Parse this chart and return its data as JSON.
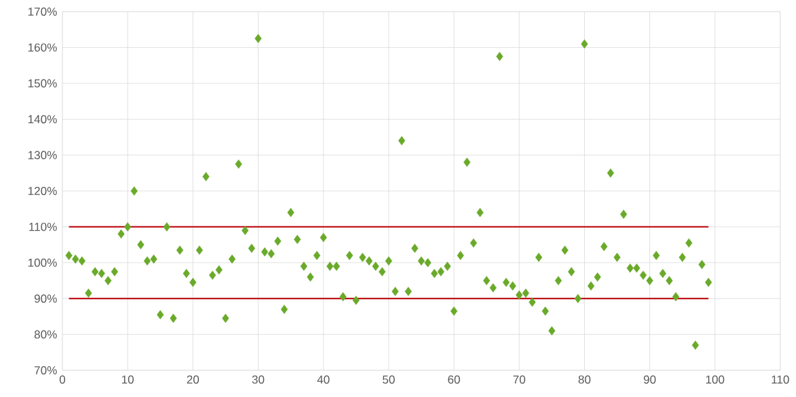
{
  "chart_data": {
    "type": "scatter",
    "xlim": [
      0,
      110
    ],
    "ylim": [
      70,
      170
    ],
    "xticks": [
      0,
      10,
      20,
      30,
      40,
      50,
      60,
      70,
      80,
      90,
      100,
      110
    ],
    "yticks": [
      {
        "value": 70,
        "label": "70%"
      },
      {
        "value": 80,
        "label": "80%"
      },
      {
        "value": 90,
        "label": "90%"
      },
      {
        "value": 100,
        "label": "100%"
      },
      {
        "value": 110,
        "label": "110%"
      },
      {
        "value": 120,
        "label": "120%"
      },
      {
        "value": 130,
        "label": "130%"
      },
      {
        "value": 140,
        "label": "140%"
      },
      {
        "value": 150,
        "label": "150%"
      },
      {
        "value": 160,
        "label": "160%"
      },
      {
        "value": 170,
        "label": "170%"
      }
    ],
    "grid": true,
    "legend": false,
    "series": [
      {
        "color": "#6aaa2a",
        "marker": "diamond",
        "x": [
          1,
          2,
          3,
          4,
          5,
          6,
          7,
          8,
          9,
          10,
          11,
          12,
          13,
          14,
          15,
          16,
          17,
          18,
          19,
          20,
          21,
          22,
          23,
          24,
          25,
          26,
          27,
          28,
          29,
          30,
          31,
          32,
          33,
          34,
          35,
          36,
          37,
          38,
          39,
          40,
          41,
          42,
          43,
          44,
          45,
          46,
          47,
          48,
          49,
          50,
          51,
          52,
          53,
          54,
          55,
          56,
          57,
          58,
          59,
          60,
          61,
          62,
          63,
          64,
          65,
          66,
          67,
          68,
          69,
          70,
          71,
          72,
          73,
          74,
          75,
          76,
          77,
          78,
          79,
          80,
          81,
          82,
          83,
          84,
          85,
          86,
          87,
          88,
          89,
          90,
          91,
          92,
          93,
          94,
          95,
          96,
          97,
          98,
          99
        ],
        "values": [
          102,
          101,
          100.5,
          91.5,
          97.5,
          97,
          95,
          97.5,
          108,
          110,
          120,
          105,
          100.5,
          101,
          85.5,
          110,
          84.5,
          103.5,
          97,
          94.5,
          103.5,
          124,
          96.5,
          98,
          84.5,
          101,
          127.5,
          109,
          104,
          162.5,
          103,
          102.5,
          106,
          87,
          114,
          106.5,
          99,
          96,
          102,
          107,
          99,
          99,
          90.5,
          102,
          89.5,
          101.5,
          100.5,
          99,
          97.5,
          100.5,
          92,
          134,
          92,
          104,
          100.5,
          100,
          97,
          97.5,
          99,
          86.5,
          102,
          128,
          105.5,
          114,
          95,
          93,
          157.5,
          94.5,
          93.5,
          91,
          91.5,
          89,
          101.5,
          86.5,
          81,
          95,
          103.5,
          97.5,
          90,
          161,
          93.5,
          96,
          104.5,
          125,
          101.5,
          113.5,
          98.5,
          98.5,
          96.5,
          95,
          102,
          97,
          95,
          90.5,
          101.5,
          105.5,
          77,
          99.5,
          94.5
        ]
      },
      {
        "type": "line",
        "color": "#c0161c",
        "marker": "none",
        "line_style": "solid",
        "x": [
          1,
          99
        ],
        "values": [
          110,
          110
        ]
      },
      {
        "type": "line",
        "color": "#c0161c",
        "marker": "none",
        "line_style": "solid",
        "x": [
          1,
          99
        ],
        "values": [
          90,
          90
        ]
      }
    ]
  }
}
